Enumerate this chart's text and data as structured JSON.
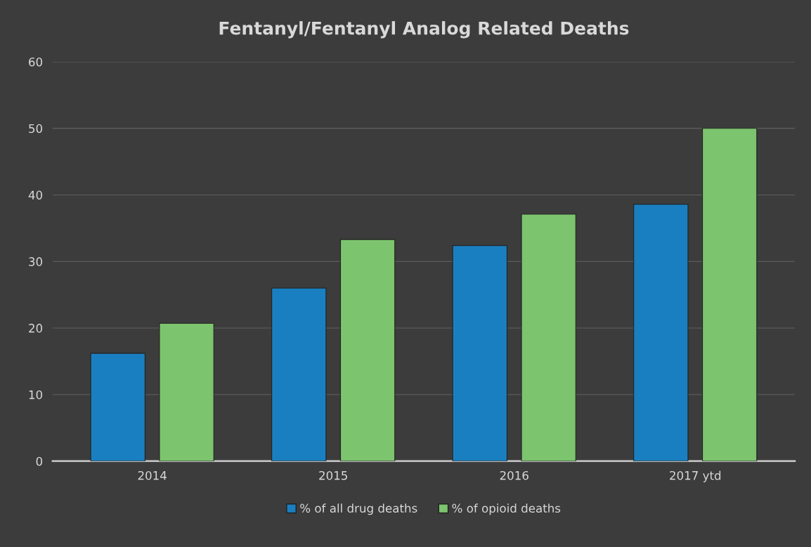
{
  "chart_data": {
    "type": "bar",
    "title": "Fentanyl/Fentanyl Analog Related Deaths",
    "categories": [
      "2014",
      "2015",
      "2016",
      "2017 ytd"
    ],
    "series": [
      {
        "name": "% of all drug deaths",
        "color": "#1a7fc0",
        "values": [
          16.2,
          26.0,
          32.4,
          38.6
        ]
      },
      {
        "name": "% of opioid deaths",
        "color": "#7cc46e",
        "values": [
          20.7,
          33.3,
          37.1,
          50.0
        ]
      }
    ],
    "ylim": [
      0,
      60
    ],
    "yticks": [
      0,
      10,
      20,
      30,
      40,
      50,
      60
    ],
    "grid": "y",
    "legend": "bottom"
  }
}
